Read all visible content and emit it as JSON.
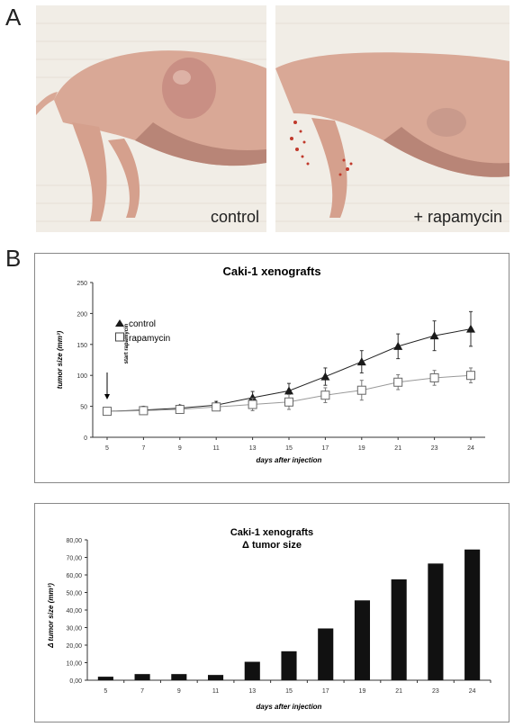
{
  "panels": {
    "a_letter": "A",
    "b_letter": "B"
  },
  "photos": {
    "left_label": "control",
    "right_label": "+ rapamycin"
  },
  "colors": {
    "photo_background": "#f1ede6",
    "skin": "#d9a896",
    "skin_shadow": "#b88577",
    "tumor": "#c98f84",
    "blood": "#c0392b",
    "control_series": "#222222",
    "rapamycin_series": "#999999",
    "bar_fill": "#111111"
  },
  "chart_data": [
    {
      "type": "line",
      "title": "Caki-1 xenografts",
      "xlabel": "days after injection",
      "ylabel": "tumor size (mm³)",
      "categories": [
        "5",
        "7",
        "9",
        "11",
        "13",
        "15",
        "17",
        "19",
        "21",
        "23",
        "24"
      ],
      "ylim": [
        0,
        250
      ],
      "yticks": [
        "0",
        "50",
        "100",
        "150",
        "200",
        "250"
      ],
      "grid": false,
      "legend_placement": "top-left",
      "annotation": "start rapamycin",
      "series": [
        {
          "name": "control",
          "marker": "filled-triangle",
          "values": [
            42,
            44,
            47,
            52,
            64,
            75,
            98,
            122,
            147,
            164,
            175
          ],
          "errors": [
            6,
            6,
            5,
            6,
            10,
            12,
            14,
            18,
            20,
            24,
            28
          ]
        },
        {
          "name": "rapamycin",
          "marker": "open-square",
          "values": [
            42,
            43,
            45,
            49,
            53,
            57,
            68,
            76,
            89,
            96,
            100
          ],
          "errors": [
            6,
            6,
            5,
            6,
            10,
            12,
            12,
            16,
            12,
            12,
            12
          ]
        }
      ]
    },
    {
      "type": "bar",
      "title_lines": [
        "Caki-1 xenografts",
        "Δ tumor size"
      ],
      "xlabel": "days after injection",
      "ylabel": "Δ tumor size (mm³)",
      "categories": [
        "5",
        "7",
        "9",
        "11",
        "13",
        "15",
        "17",
        "19",
        "21",
        "23",
        "24"
      ],
      "values": [
        2,
        3.5,
        3.5,
        3,
        10.5,
        16.5,
        29.5,
        45.5,
        57.5,
        66.5,
        74.5
      ],
      "ylim": [
        0,
        80
      ],
      "yticks": [
        "0,00",
        "10,00",
        "20,00",
        "30,00",
        "40,00",
        "50,00",
        "60,00",
        "70,00",
        "80,00"
      ],
      "grid": false
    }
  ]
}
